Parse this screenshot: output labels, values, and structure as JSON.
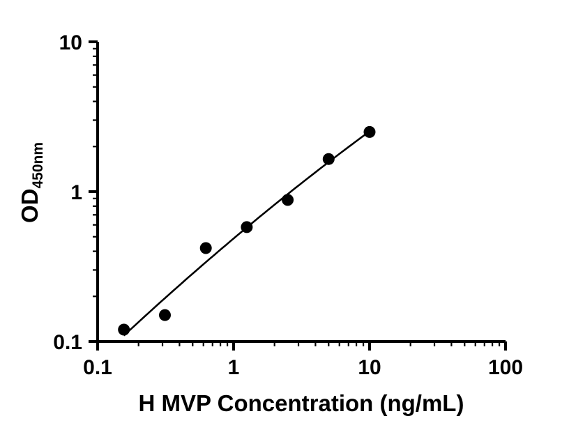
{
  "chart_data": {
    "type": "scatter",
    "title": "",
    "xlabel": "H MVP Concentration (ng/mL)",
    "ylabel_main": "OD",
    "ylabel_sub": "450nm",
    "x_scale": "log",
    "y_scale": "log",
    "xlim": [
      0.1,
      100
    ],
    "ylim": [
      0.1,
      10
    ],
    "x_major_ticks": [
      0.1,
      1,
      10,
      100
    ],
    "x_tick_labels": [
      "0.1",
      "1",
      "10",
      "100"
    ],
    "y_major_ticks": [
      0.1,
      1,
      10
    ],
    "y_tick_labels": [
      "0.1",
      "1",
      "10"
    ],
    "grid": false,
    "legend": "none",
    "axis_color": "#000000",
    "marker_color": "#000000",
    "line_color": "#000000",
    "points": [
      {
        "x": 0.156,
        "y": 0.12
      },
      {
        "x": 0.3125,
        "y": 0.15
      },
      {
        "x": 0.625,
        "y": 0.42
      },
      {
        "x": 1.25,
        "y": 0.58
      },
      {
        "x": 2.5,
        "y": 0.88
      },
      {
        "x": 5,
        "y": 1.65
      },
      {
        "x": 10,
        "y": 2.5
      }
    ],
    "trendline": {
      "type": "quadratic-loglog-fit",
      "x_start": 0.156,
      "x_end": 10
    }
  }
}
